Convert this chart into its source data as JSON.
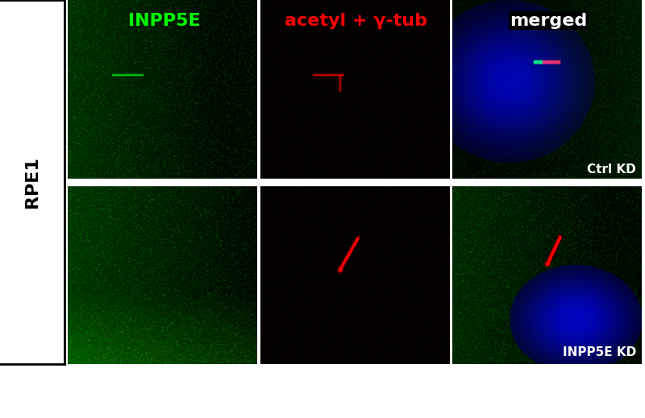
{
  "title_col1": "INPP5E",
  "title_col2": "acetyl + γ-tub",
  "title_col3": "merged",
  "label_left": "RPE1",
  "label_ctrl": "Ctrl KD",
  "label_kd": "INPP5E KD",
  "title_col1_color": "#00ff00",
  "title_col2_color": "#ff0000",
  "title_col3_color": "#ffffff",
  "label_ctrl_color": "#ffffff",
  "label_kd_color": "#ffffff",
  "label_left_color": "#000000",
  "bg_color": "#ffffff",
  "figsize": [
    8.0,
    5.19
  ],
  "dpi": 100
}
